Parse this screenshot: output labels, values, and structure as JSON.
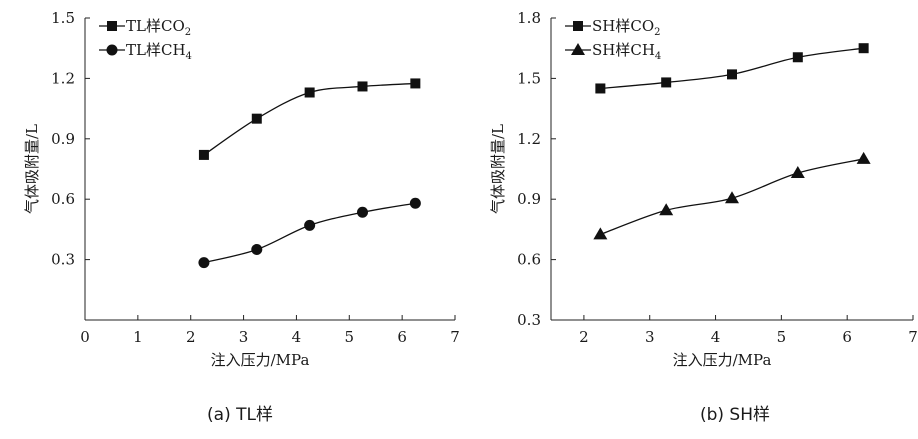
{
  "chart_data": [
    {
      "type": "line",
      "caption": "(a) TL样",
      "xlabel": "注入压力/MPa",
      "ylabel": "气体吸附量/L",
      "xlim": [
        0,
        7
      ],
      "ylim": [
        0,
        1.5
      ],
      "xticks": [
        "0",
        "1",
        "2",
        "3",
        "4",
        "5",
        "6",
        "7"
      ],
      "yticks": [
        "0.3",
        "0.6",
        "0.9",
        "1.2",
        "1.5"
      ],
      "x": [
        2.25,
        3.25,
        4.25,
        5.25,
        6.25
      ],
      "series": [
        {
          "name": "TL样CO₂",
          "marker": "square",
          "values": [
            0.82,
            1.0,
            1.13,
            1.16,
            1.175
          ]
        },
        {
          "name": "TL样CH₄",
          "marker": "circle",
          "values": [
            0.285,
            0.35,
            0.47,
            0.535,
            0.58
          ]
        }
      ],
      "legend": "top-left",
      "grid": false
    },
    {
      "type": "line",
      "caption": "(b) SH样",
      "xlabel": "注入压力/MPa",
      "ylabel": "气体吸附量/L",
      "xlim": [
        1.5,
        7
      ],
      "ylim": [
        0.3,
        1.8
      ],
      "xticks": [
        "2",
        "3",
        "4",
        "5",
        "6",
        "7"
      ],
      "yticks": [
        "0.3",
        "0.6",
        "0.9",
        "1.2",
        "1.5",
        "1.8"
      ],
      "x": [
        2.25,
        3.25,
        4.25,
        5.25,
        6.25
      ],
      "series": [
        {
          "name": "SH样CO₂",
          "marker": "square",
          "values": [
            1.45,
            1.48,
            1.52,
            1.605,
            1.65
          ]
        },
        {
          "name": "SH样CH₄",
          "marker": "triangle",
          "values": [
            0.725,
            0.845,
            0.905,
            1.03,
            1.1
          ]
        }
      ],
      "legend": "top-left",
      "grid": false
    }
  ]
}
